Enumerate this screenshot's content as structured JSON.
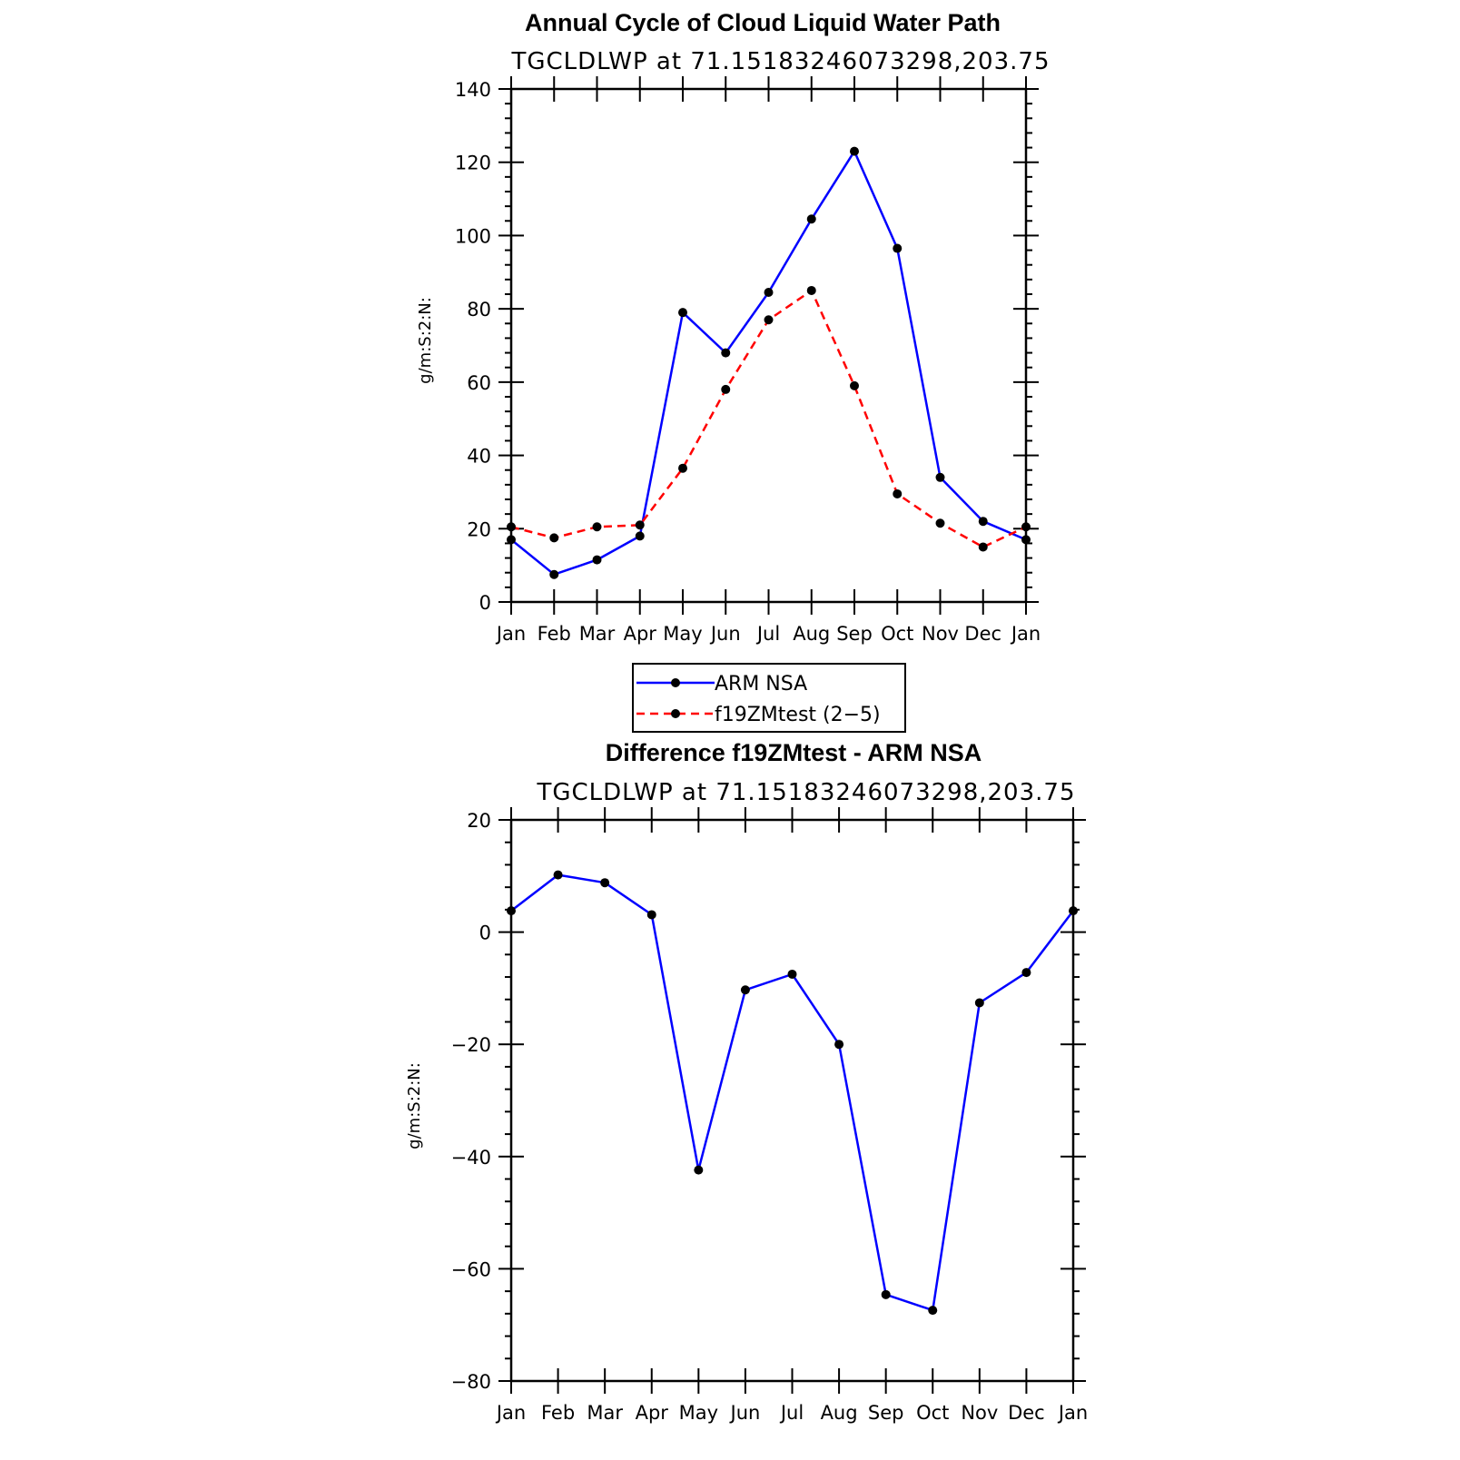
{
  "chart_data": [
    {
      "type": "line",
      "title": "Annual Cycle of Cloud Liquid Water Path",
      "subtitle": "TGCLDLWP  at  71.15183246073298,203.75",
      "xlabel": "",
      "ylabel": "g/m:S:2:N:",
      "categories": [
        "Jan",
        "Feb",
        "Mar",
        "Apr",
        "May",
        "Jun",
        "Jul",
        "Aug",
        "Sep",
        "Oct",
        "Nov",
        "Dec",
        "Jan"
      ],
      "ylim": [
        0,
        140
      ],
      "yticks": [
        "0",
        "20",
        "40",
        "60",
        "80",
        "100",
        "120",
        "140"
      ],
      "series": [
        {
          "name": "ARM  NSA",
          "color": "#0000ff",
          "dash": "solid",
          "values": [
            17,
            7.5,
            11.5,
            18,
            79,
            68,
            84.5,
            104.5,
            123,
            96.5,
            34,
            22,
            17
          ]
        },
        {
          "name": "f19ZMtest (2−5)",
          "color": "#ff0000",
          "dash": "dashed",
          "values": [
            20.5,
            17.5,
            20.5,
            21,
            36.5,
            58,
            77,
            85,
            59,
            29.5,
            21.5,
            15,
            20.5
          ]
        }
      ],
      "legend": "bottom"
    },
    {
      "type": "line",
      "title": "Difference f19ZMtest - ARM NSA",
      "subtitle": "TGCLDLWP  at  71.15183246073298,203.75",
      "xlabel": "",
      "ylabel": "g/m:S:2:N:",
      "categories": [
        "Jan",
        "Feb",
        "Mar",
        "Apr",
        "May",
        "Jun",
        "Jul",
        "Aug",
        "Sep",
        "Oct",
        "Nov",
        "Dec",
        "Jan"
      ],
      "ylim": [
        -80,
        20
      ],
      "yticks": [
        "−80",
        "−60",
        "−40",
        "−20",
        "0",
        "20"
      ],
      "series": [
        {
          "name": "difference",
          "color": "#0000ff",
          "dash": "solid",
          "values": [
            3.8,
            10.2,
            8.8,
            3.1,
            -42.4,
            -10.3,
            -7.5,
            -20,
            -64.6,
            -67.4,
            -12.6,
            -7.2,
            3.8
          ]
        }
      ]
    }
  ]
}
